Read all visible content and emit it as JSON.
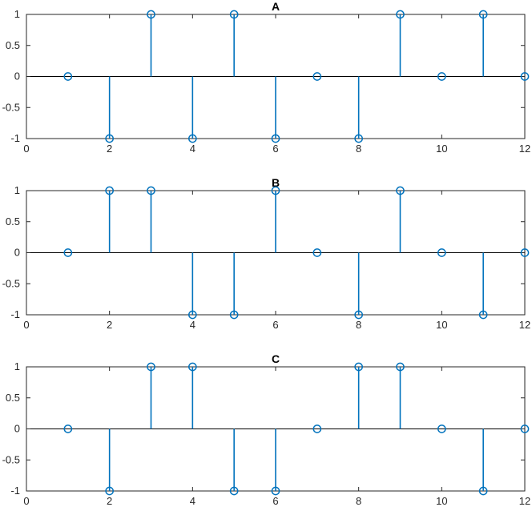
{
  "chart_data": [
    {
      "type": "stem",
      "title": "A",
      "xlabel": "",
      "ylabel": "",
      "xlim": [
        0,
        12
      ],
      "ylim": [
        -1,
        1
      ],
      "xticks": [
        "0",
        "2",
        "4",
        "6",
        "8",
        "10",
        "12"
      ],
      "yticks": [
        "1",
        "0.5",
        "0",
        "-0.5",
        "-1"
      ],
      "grid": false,
      "color": "#0072BD",
      "x": [
        1,
        2,
        3,
        4,
        5,
        6,
        7,
        8,
        9,
        10,
        11,
        12
      ],
      "values": [
        0,
        -1,
        1,
        -1,
        1,
        -1,
        0,
        -1,
        1,
        0,
        1,
        0
      ]
    },
    {
      "type": "stem",
      "title": "B",
      "xlabel": "",
      "ylabel": "",
      "xlim": [
        0,
        12
      ],
      "ylim": [
        -1,
        1
      ],
      "xticks": [
        "0",
        "2",
        "4",
        "6",
        "8",
        "10",
        "12"
      ],
      "yticks": [
        "1",
        "0.5",
        "0",
        "-0.5",
        "-1"
      ],
      "grid": false,
      "color": "#0072BD",
      "x": [
        1,
        2,
        3,
        4,
        5,
        6,
        7,
        8,
        9,
        10,
        11,
        12
      ],
      "values": [
        0,
        1,
        1,
        -1,
        -1,
        1,
        0,
        -1,
        1,
        0,
        -1,
        0
      ]
    },
    {
      "type": "stem",
      "title": "C",
      "xlabel": "",
      "ylabel": "",
      "xlim": [
        0,
        12
      ],
      "ylim": [
        -1,
        1
      ],
      "xticks": [
        "0",
        "2",
        "4",
        "6",
        "8",
        "10",
        "12"
      ],
      "yticks": [
        "1",
        "0.5",
        "0",
        "-0.5",
        "-1"
      ],
      "grid": false,
      "color": "#0072BD",
      "x": [
        1,
        2,
        3,
        4,
        5,
        6,
        7,
        8,
        9,
        10,
        11,
        12
      ],
      "values": [
        0,
        -1,
        1,
        1,
        -1,
        -1,
        0,
        1,
        1,
        0,
        -1,
        0
      ]
    }
  ]
}
